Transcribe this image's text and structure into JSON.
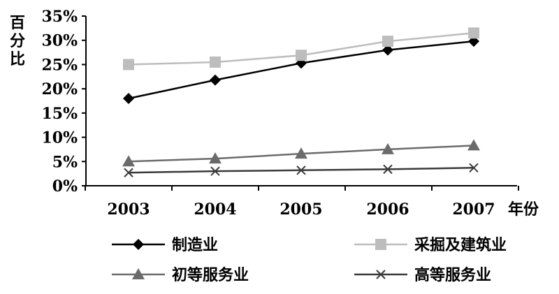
{
  "chart_data": {
    "type": "line",
    "title": "",
    "ylabel": "百分比",
    "xlabel": "年份",
    "categories": [
      "2003",
      "2004",
      "2005",
      "2006",
      "2007"
    ],
    "y_ticks": [
      "0%",
      "5%",
      "10%",
      "15%",
      "20%",
      "25%",
      "30%",
      "35%"
    ],
    "ylim": [
      0,
      35
    ],
    "grid": false,
    "legend_position": "bottom",
    "series": [
      {
        "name": "制造业",
        "values": [
          18.0,
          21.8,
          25.3,
          28.0,
          29.8
        ],
        "marker": "diamond",
        "color": "#000000"
      },
      {
        "name": "采掘及建筑业",
        "values": [
          25.0,
          25.5,
          26.9,
          29.8,
          31.5
        ],
        "marker": "square",
        "color": "#bdbdbd"
      },
      {
        "name": "初等服务业",
        "values": [
          5.0,
          5.6,
          6.6,
          7.5,
          8.3
        ],
        "marker": "triangle",
        "color": "#6b6b6b"
      },
      {
        "name": "高等服务业",
        "values": [
          2.7,
          3.0,
          3.2,
          3.4,
          3.7
        ],
        "marker": "x",
        "color": "#3a3a3a"
      }
    ]
  }
}
